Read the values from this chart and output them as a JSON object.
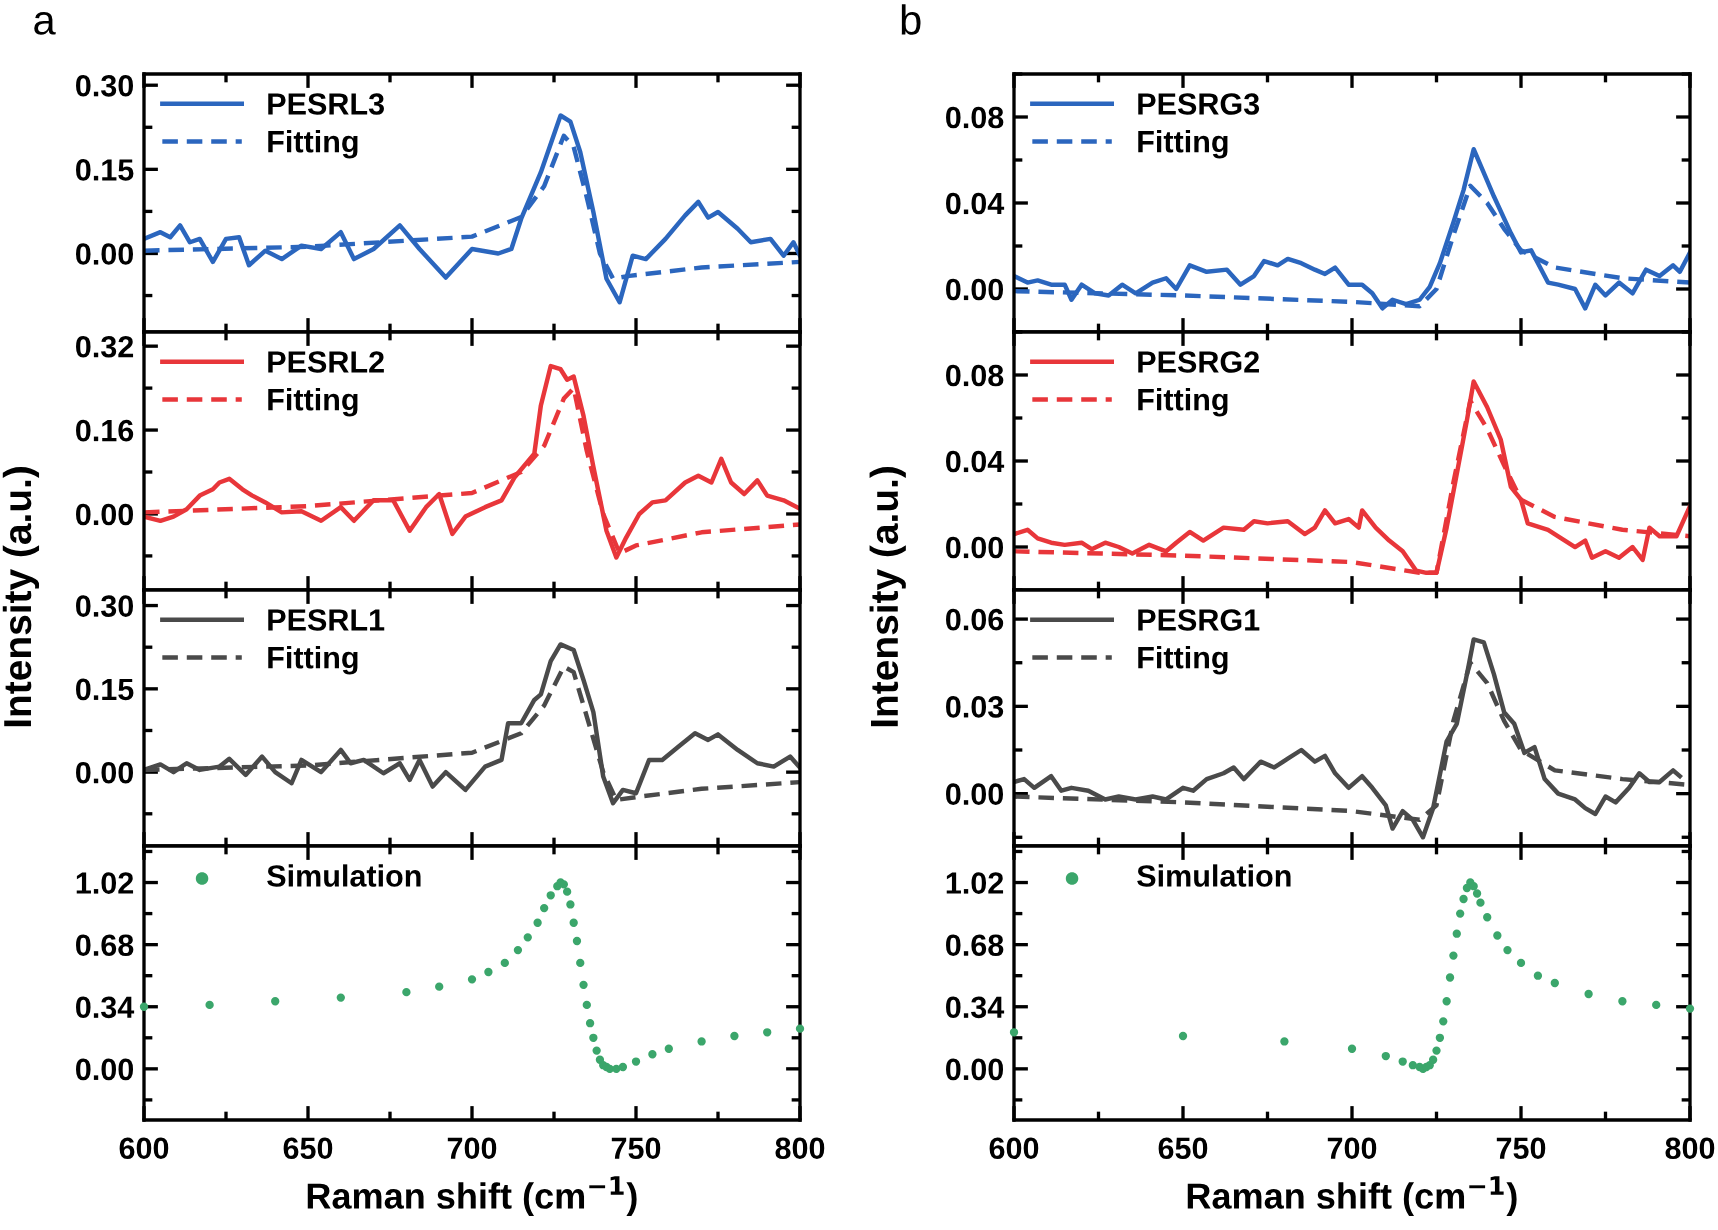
{
  "chart_data": [
    {
      "type": "line",
      "annotations": [
        "a"
      ],
      "xlim": [
        600,
        800
      ],
      "xticks": [
        600,
        650,
        700,
        750,
        800
      ],
      "ylim": [
        -0.14,
        0.32
      ],
      "yticks": [
        {
          "value": 0,
          "label": "0.00"
        },
        {
          "value": 0.15,
          "label": "0.15"
        },
        {
          "value": 0.3,
          "label": "0.30"
        }
      ],
      "tick_labels": "y",
      "legend": "top left",
      "grid": false,
      "series": [
        {
          "name": "PESRL3",
          "color": "#2b66be",
          "line_style": "solid",
          "x": [
            600,
            605,
            608,
            611,
            614,
            617,
            621,
            625,
            629,
            632,
            637,
            642,
            648,
            654,
            660,
            664,
            670,
            678,
            684,
            692,
            700,
            708,
            712,
            715,
            721,
            727,
            730,
            733,
            737,
            741,
            745,
            749,
            753,
            759,
            765,
            769,
            772,
            775,
            781,
            785,
            791,
            795,
            798,
            800
          ],
          "values": [
            0.026,
            0.038,
            0.029,
            0.05,
            0.02,
            0.026,
            -0.015,
            0.026,
            0.029,
            -0.021,
            0.005,
            -0.01,
            0.014,
            0.008,
            0.038,
            -0.01,
            0.008,
            0.05,
            0.008,
            -0.043,
            0.008,
            0,
            0.008,
            0.062,
            0.145,
            0.246,
            0.235,
            0.181,
            0.074,
            -0.045,
            -0.087,
            -0.004,
            -0.01,
            0.026,
            0.068,
            0.092,
            0.064,
            0.074,
            0.044,
            0.02,
            0.026,
            -0.004,
            0.02,
            -0.004
          ]
        },
        {
          "name": "Fitting",
          "color": "#2b66be",
          "line_style": "dashed",
          "x": [
            600,
            650,
            700,
            715,
            722,
            728,
            731,
            735,
            739,
            743,
            748,
            770,
            800
          ],
          "values": [
            0.005,
            0.012,
            0.03,
            0.065,
            0.12,
            0.21,
            0.19,
            0.1,
            0.0,
            -0.045,
            -0.04,
            -0.025,
            -0.015
          ]
        }
      ]
    },
    {
      "type": "line",
      "ylabel": "Intensity (a.u.)",
      "xlim": [
        600,
        800
      ],
      "xticks": [
        600,
        650,
        700,
        750,
        800
      ],
      "ylim": [
        -0.145,
        0.347
      ],
      "yticks": [
        {
          "value": 0,
          "label": "0.00"
        },
        {
          "value": 0.16,
          "label": "0.16"
        },
        {
          "value": 0.32,
          "label": "0.32"
        }
      ],
      "tick_labels": "y",
      "legend": "top left",
      "grid": false,
      "series": [
        {
          "name": "PESRL2",
          "color": "#e8363a",
          "line_style": "solid",
          "x": [
            600,
            605,
            609,
            613,
            617,
            621,
            623,
            626,
            630,
            633,
            637,
            642,
            648,
            654,
            660,
            664,
            670,
            676,
            681,
            686,
            690,
            694,
            698,
            704,
            709,
            713,
            719,
            721,
            724,
            727,
            729,
            731,
            734,
            737,
            741,
            744,
            747,
            751,
            755,
            759,
            765,
            769,
            773,
            776,
            779,
            783,
            787,
            790,
            795,
            800
          ],
          "values": [
            -0.005,
            -0.013,
            -0.005,
            0.009,
            0.035,
            0.047,
            0.06,
            0.067,
            0.047,
            0.035,
            0.022,
            0.003,
            0.005,
            -0.013,
            0.013,
            -0.013,
            0.026,
            0.026,
            -0.032,
            0.013,
            0.038,
            -0.038,
            -0.005,
            0.013,
            0.026,
            0.07,
            0.115,
            0.207,
            0.282,
            0.276,
            0.256,
            0.262,
            0.187,
            0.09,
            -0.032,
            -0.083,
            -0.045,
            0,
            0.022,
            0.026,
            0.06,
            0.073,
            0.06,
            0.105,
            0.06,
            0.038,
            0.064,
            0.035,
            0.026,
            0.01
          ]
        },
        {
          "name": "Fitting",
          "color": "#e8363a",
          "line_style": "dashed",
          "x": [
            600,
            650,
            700,
            715,
            722,
            728,
            731,
            735,
            740,
            745,
            750,
            770,
            800
          ],
          "values": [
            0.003,
            0.015,
            0.04,
            0.08,
            0.13,
            0.22,
            0.24,
            0.12,
            0.0,
            -0.075,
            -0.06,
            -0.035,
            -0.02
          ]
        }
      ]
    },
    {
      "type": "line",
      "xlim": [
        600,
        800
      ],
      "xticks": [
        600,
        650,
        700,
        750,
        800
      ],
      "ylim": [
        -0.133,
        0.328
      ],
      "yticks": [
        {
          "value": 0,
          "label": "0.00"
        },
        {
          "value": 0.15,
          "label": "0.15"
        },
        {
          "value": 0.3,
          "label": "0.30"
        }
      ],
      "tick_labels": "y",
      "legend": "top left",
      "grid": false,
      "series": [
        {
          "name": "PESRL1",
          "color": "#4a4a4a",
          "line_style": "solid",
          "x": [
            600,
            605,
            609,
            613,
            617,
            623,
            626,
            631,
            636,
            640,
            645,
            648,
            654,
            660,
            663,
            667,
            673,
            678,
            681,
            684,
            688,
            692,
            698,
            704,
            709,
            711,
            715,
            719,
            721,
            724,
            727,
            731,
            734,
            737,
            740,
            743,
            746,
            750,
            754,
            758,
            763,
            768,
            772,
            775,
            781,
            787,
            792,
            797,
            800
          ],
          "values": [
            0.004,
            0.014,
            0,
            0.016,
            0.004,
            0.01,
            0.024,
            -0.005,
            0.028,
            0,
            -0.02,
            0.022,
            0,
            0.04,
            0.016,
            0.022,
            -0.002,
            0.016,
            -0.014,
            0.022,
            -0.026,
            0,
            -0.032,
            0.01,
            0.022,
            0.088,
            0.088,
            0.13,
            0.14,
            0.2,
            0.23,
            0.22,
            0.166,
            0.108,
            -0.008,
            -0.056,
            -0.032,
            -0.038,
            0.022,
            0.022,
            0.046,
            0.07,
            0.058,
            0.068,
            0.04,
            0.016,
            0.01,
            0.028,
            0.008
          ]
        },
        {
          "name": "Fitting",
          "color": "#4a4a4a",
          "line_style": "dashed",
          "x": [
            600,
            650,
            700,
            715,
            722,
            728,
            731,
            735,
            740,
            744,
            750,
            770,
            800
          ],
          "values": [
            0.004,
            0.012,
            0.035,
            0.07,
            0.12,
            0.19,
            0.18,
            0.1,
            0.0,
            -0.05,
            -0.045,
            -0.03,
            -0.018
          ]
        }
      ]
    },
    {
      "type": "scatter",
      "xlabel": "Raman shift (cm$^{−1}$)",
      "xlim": [
        600,
        800
      ],
      "xticks": [
        600,
        650,
        700,
        750,
        800
      ],
      "ylim": [
        -0.28,
        1.22
      ],
      "yticks": [
        {
          "value": 0,
          "label": "0.00"
        },
        {
          "value": 0.34,
          "label": "0.34"
        },
        {
          "value": 0.68,
          "label": "0.68"
        },
        {
          "value": 1.02,
          "label": "1.02"
        }
      ],
      "legend": "top left",
      "grid": false,
      "marker": "circle",
      "series": [
        {
          "name": "Simulation",
          "color": "#3ba66b",
          "x": [
            600,
            620,
            640,
            660,
            680,
            690,
            700,
            705,
            710,
            714,
            717,
            720,
            722,
            724,
            726,
            727,
            728,
            729,
            730,
            731,
            732,
            733,
            734,
            735,
            736,
            737,
            738,
            739,
            740,
            741,
            742,
            744,
            746,
            750,
            755,
            760,
            770,
            780,
            790,
            800
          ],
          "values": [
            0.34,
            0.35,
            0.37,
            0.39,
            0.42,
            0.45,
            0.49,
            0.53,
            0.58,
            0.65,
            0.72,
            0.8,
            0.88,
            0.95,
            1.0,
            1.02,
            1.01,
            0.97,
            0.9,
            0.8,
            0.7,
            0.58,
            0.46,
            0.35,
            0.25,
            0.17,
            0.1,
            0.05,
            0.02,
            0.01,
            0.0,
            0.0,
            0.01,
            0.04,
            0.08,
            0.11,
            0.15,
            0.18,
            0.2,
            0.22
          ]
        }
      ]
    },
    {
      "type": "line",
      "annotations": [
        "b"
      ],
      "xlim": [
        600,
        800
      ],
      "xticks": [
        600,
        650,
        700,
        750,
        800
      ],
      "ylim": [
        -0.02,
        0.1
      ],
      "yticks": [
        {
          "value": 0,
          "label": "0.00"
        },
        {
          "value": 0.04,
          "label": "0.04"
        },
        {
          "value": 0.08,
          "label": "0.08"
        }
      ],
      "tick_labels": "y",
      "legend": "top left",
      "grid": false,
      "series": [
        {
          "name": "PESRG3",
          "color": "#2b66be",
          "line_style": "solid",
          "x": [
            600,
            604,
            607,
            611,
            615,
            617,
            620,
            624,
            628,
            632,
            636,
            641,
            645,
            648,
            652,
            657,
            663,
            667,
            671,
            674,
            678,
            681,
            685,
            689,
            692,
            695,
            699,
            703,
            706,
            709,
            712,
            716,
            720,
            723,
            726,
            730,
            733,
            736,
            739,
            742,
            747,
            750,
            753,
            758,
            761,
            766,
            769,
            772,
            775,
            779,
            783,
            787,
            791,
            795,
            797,
            800
          ],
          "values": [
            0.006,
            0.003,
            0.004,
            0.002,
            0.002,
            -0.005,
            0.002,
            -0.002,
            -0.003,
            0.002,
            -0.002,
            0.003,
            0.005,
            0,
            0.011,
            0.008,
            0.009,
            0.002,
            0.006,
            0.013,
            0.011,
            0.014,
            0.012,
            0.009,
            0.007,
            0.01,
            0.002,
            0.002,
            -0.002,
            -0.009,
            -0.005,
            -0.007,
            -0.005,
            0.001,
            0.012,
            0.031,
            0.046,
            0.065,
            0.054,
            0.043,
            0.026,
            0.017,
            0.018,
            0.003,
            0.002,
            0,
            -0.009,
            0.002,
            -0.003,
            0.003,
            -0.002,
            0.009,
            0.006,
            0.011,
            0.008,
            0.017
          ]
        },
        {
          "name": "Fitting",
          "color": "#2b66be",
          "line_style": "dashed",
          "x": [
            600,
            650,
            700,
            720,
            725,
            730,
            735,
            740,
            745,
            750,
            760,
            780,
            800
          ],
          "values": [
            -0.001,
            -0.003,
            -0.006,
            -0.008,
            0.0,
            0.025,
            0.048,
            0.04,
            0.028,
            0.018,
            0.01,
            0.005,
            0.003
          ]
        }
      ]
    },
    {
      "type": "line",
      "ylabel": "Intensity (a.u.)",
      "xlim": [
        600,
        800
      ],
      "xticks": [
        600,
        650,
        700,
        750,
        800
      ],
      "ylim": [
        -0.02,
        0.1
      ],
      "yticks": [
        {
          "value": 0,
          "label": "0.00"
        },
        {
          "value": 0.04,
          "label": "0.04"
        },
        {
          "value": 0.08,
          "label": "0.08"
        }
      ],
      "tick_labels": "y",
      "legend": "top left",
      "grid": false,
      "series": [
        {
          "name": "PESRG2",
          "color": "#e8363a",
          "line_style": "solid",
          "x": [
            600,
            604,
            607,
            611,
            615,
            620,
            623,
            627,
            631,
            635,
            640,
            645,
            648,
            652,
            656,
            662,
            668,
            671,
            675,
            681,
            686,
            689,
            692,
            695,
            699,
            702,
            703,
            707,
            711,
            715,
            719,
            722,
            725,
            728,
            731,
            734,
            736,
            740,
            744,
            747,
            750,
            752,
            758,
            761,
            766,
            769,
            771,
            775,
            779,
            783,
            786,
            788,
            791,
            796,
            800
          ],
          "values": [
            0.006,
            0.008,
            0.004,
            0.002,
            0.001,
            0.002,
            -0.001,
            0.002,
            0,
            -0.003,
            0.001,
            -0.002,
            0.002,
            0.007,
            0.003,
            0.009,
            0.008,
            0.012,
            0.011,
            0.012,
            0.006,
            0.009,
            0.017,
            0.011,
            0.013,
            0.009,
            0.017,
            0.009,
            0.003,
            -0.002,
            -0.011,
            -0.012,
            -0.012,
            0.009,
            0.034,
            0.059,
            0.077,
            0.065,
            0.05,
            0.028,
            0.022,
            0.011,
            0.008,
            0.005,
            0,
            0.003,
            -0.005,
            -0.002,
            -0.005,
            0,
            -0.006,
            0.009,
            0.005,
            0.005,
            0.019
          ]
        },
        {
          "name": "Fitting",
          "color": "#e8363a",
          "line_style": "dashed",
          "x": [
            600,
            650,
            700,
            720,
            725,
            730,
            735,
            740,
            745,
            750,
            760,
            780,
            800
          ],
          "values": [
            -0.002,
            -0.004,
            -0.007,
            -0.012,
            -0.012,
            0.03,
            0.068,
            0.055,
            0.038,
            0.022,
            0.014,
            0.008,
            0.005
          ]
        }
      ]
    },
    {
      "type": "line",
      "xlim": [
        600,
        800
      ],
      "xticks": [
        600,
        650,
        700,
        750,
        800
      ],
      "ylim": [
        -0.018,
        0.07
      ],
      "yticks": [
        {
          "value": 0,
          "label": "0.00"
        },
        {
          "value": 0.03,
          "label": "0.03"
        },
        {
          "value": 0.06,
          "label": "0.06"
        }
      ],
      "tick_labels": "y",
      "legend": "top left",
      "grid": false,
      "series": [
        {
          "name": "PESRG1",
          "color": "#4a4a4a",
          "line_style": "solid",
          "x": [
            600,
            603,
            606,
            611,
            614,
            617,
            622,
            627,
            631,
            636,
            641,
            645,
            650,
            653,
            657,
            662,
            665,
            668,
            673,
            677,
            681,
            685,
            689,
            692,
            695,
            699,
            703,
            706,
            710,
            712,
            715,
            718,
            721,
            724,
            728,
            731,
            734,
            736,
            739,
            742,
            745,
            748,
            751,
            754,
            757,
            761,
            766,
            769,
            772,
            775,
            778,
            782,
            785,
            788,
            791,
            795,
            797
          ],
          "values": [
            0.004,
            0.005,
            0.002,
            0.006,
            0.001,
            0.002,
            0.001,
            -0.002,
            -0.001,
            -0.002,
            -0.001,
            -0.002,
            0.002,
            0.001,
            0.005,
            0.007,
            0.009,
            0.005,
            0.011,
            0.009,
            0.012,
            0.015,
            0.011,
            0.013,
            0.007,
            0.002,
            0.006,
            0.002,
            -0.004,
            -0.012,
            -0.006,
            -0.009,
            -0.015,
            -0.005,
            0.018,
            0.024,
            0.041,
            0.053,
            0.052,
            0.041,
            0.028,
            0.024,
            0.014,
            0.016,
            0.005,
            0,
            -0.002,
            -0.005,
            -0.007,
            -0.001,
            -0.003,
            0.002,
            0.007,
            0.004,
            0.004,
            0.008,
            0.006
          ]
        },
        {
          "name": "Fitting",
          "color": "#4a4a4a",
          "line_style": "dashed",
          "x": [
            600,
            650,
            700,
            720,
            725,
            730,
            735,
            740,
            745,
            750,
            760,
            780,
            800
          ],
          "values": [
            -0.001,
            -0.003,
            -0.006,
            -0.009,
            -0.004,
            0.025,
            0.045,
            0.038,
            0.025,
            0.015,
            0.008,
            0.005,
            0.003
          ]
        }
      ]
    },
    {
      "type": "scatter",
      "xlabel": "Raman shift (cm$^{−1}$)",
      "xlim": [
        600,
        800
      ],
      "xticks": [
        600,
        650,
        700,
        750,
        800
      ],
      "ylim": [
        -0.28,
        1.22
      ],
      "yticks": [
        {
          "value": 0,
          "label": "0.00"
        },
        {
          "value": 0.34,
          "label": "0.34"
        },
        {
          "value": 0.68,
          "label": "0.68"
        },
        {
          "value": 1.02,
          "label": "1.02"
        }
      ],
      "legend": "top left",
      "grid": false,
      "marker": "circle",
      "series": [
        {
          "name": "Simulation",
          "color": "#3ba66b",
          "x": [
            600,
            650,
            680,
            700,
            710,
            715,
            718,
            720,
            721,
            722,
            723,
            724,
            725,
            726,
            727,
            728,
            729,
            730,
            731,
            732,
            733,
            734,
            735,
            736,
            737,
            738,
            740,
            743,
            746,
            750,
            755,
            760,
            770,
            780,
            790,
            800
          ],
          "values": [
            0.2,
            0.18,
            0.15,
            0.11,
            0.07,
            0.04,
            0.02,
            0.01,
            0.0,
            0.01,
            0.02,
            0.05,
            0.1,
            0.17,
            0.26,
            0.37,
            0.5,
            0.62,
            0.74,
            0.85,
            0.93,
            0.99,
            1.02,
            1.0,
            0.96,
            0.91,
            0.83,
            0.73,
            0.65,
            0.58,
            0.51,
            0.47,
            0.41,
            0.37,
            0.35,
            0.33
          ]
        }
      ]
    }
  ]
}
